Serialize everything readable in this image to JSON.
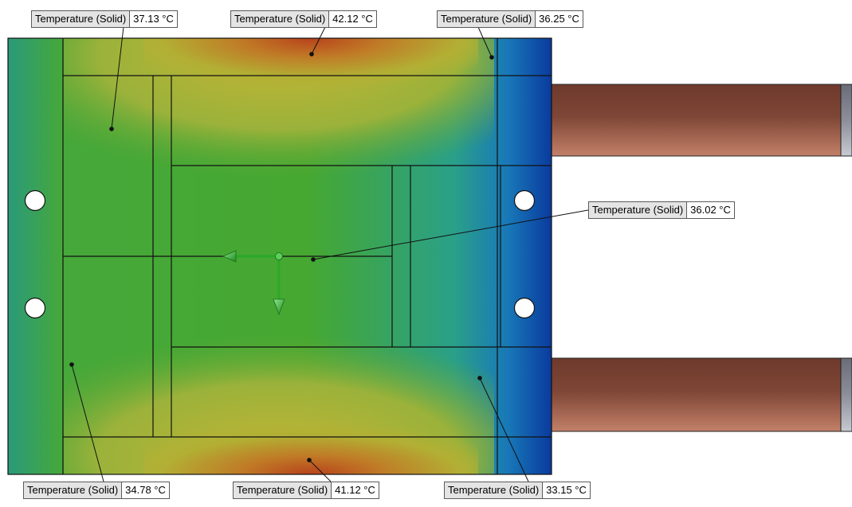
{
  "probes": [
    {
      "label": "Temperature (Solid)",
      "value": "37.13 °C"
    },
    {
      "label": "Temperature (Solid)",
      "value": "42.12 °C"
    },
    {
      "label": "Temperature (Solid)",
      "value": "36.25 °C"
    },
    {
      "label": "Temperature (Solid)",
      "value": "36.02 °C"
    },
    {
      "label": "Temperature (Solid)",
      "value": "34.78 °C"
    },
    {
      "label": "Temperature (Solid)",
      "value": "41.12 °C"
    },
    {
      "label": "Temperature (Solid)",
      "value": "33.15 °C"
    }
  ],
  "colors": {
    "hot": "#c0502a",
    "warm": "#b8b43a",
    "mid": "#3a9a2e",
    "cool": "#1f9aa0",
    "cold": "#0a2a9a",
    "pipe": "#8a4a34",
    "pipe_end": "#a8aab4",
    "outline": "#111111"
  },
  "icons": [
    "triad-x-arrow-icon",
    "triad-y-arrow-icon",
    "triad-origin-icon"
  ]
}
